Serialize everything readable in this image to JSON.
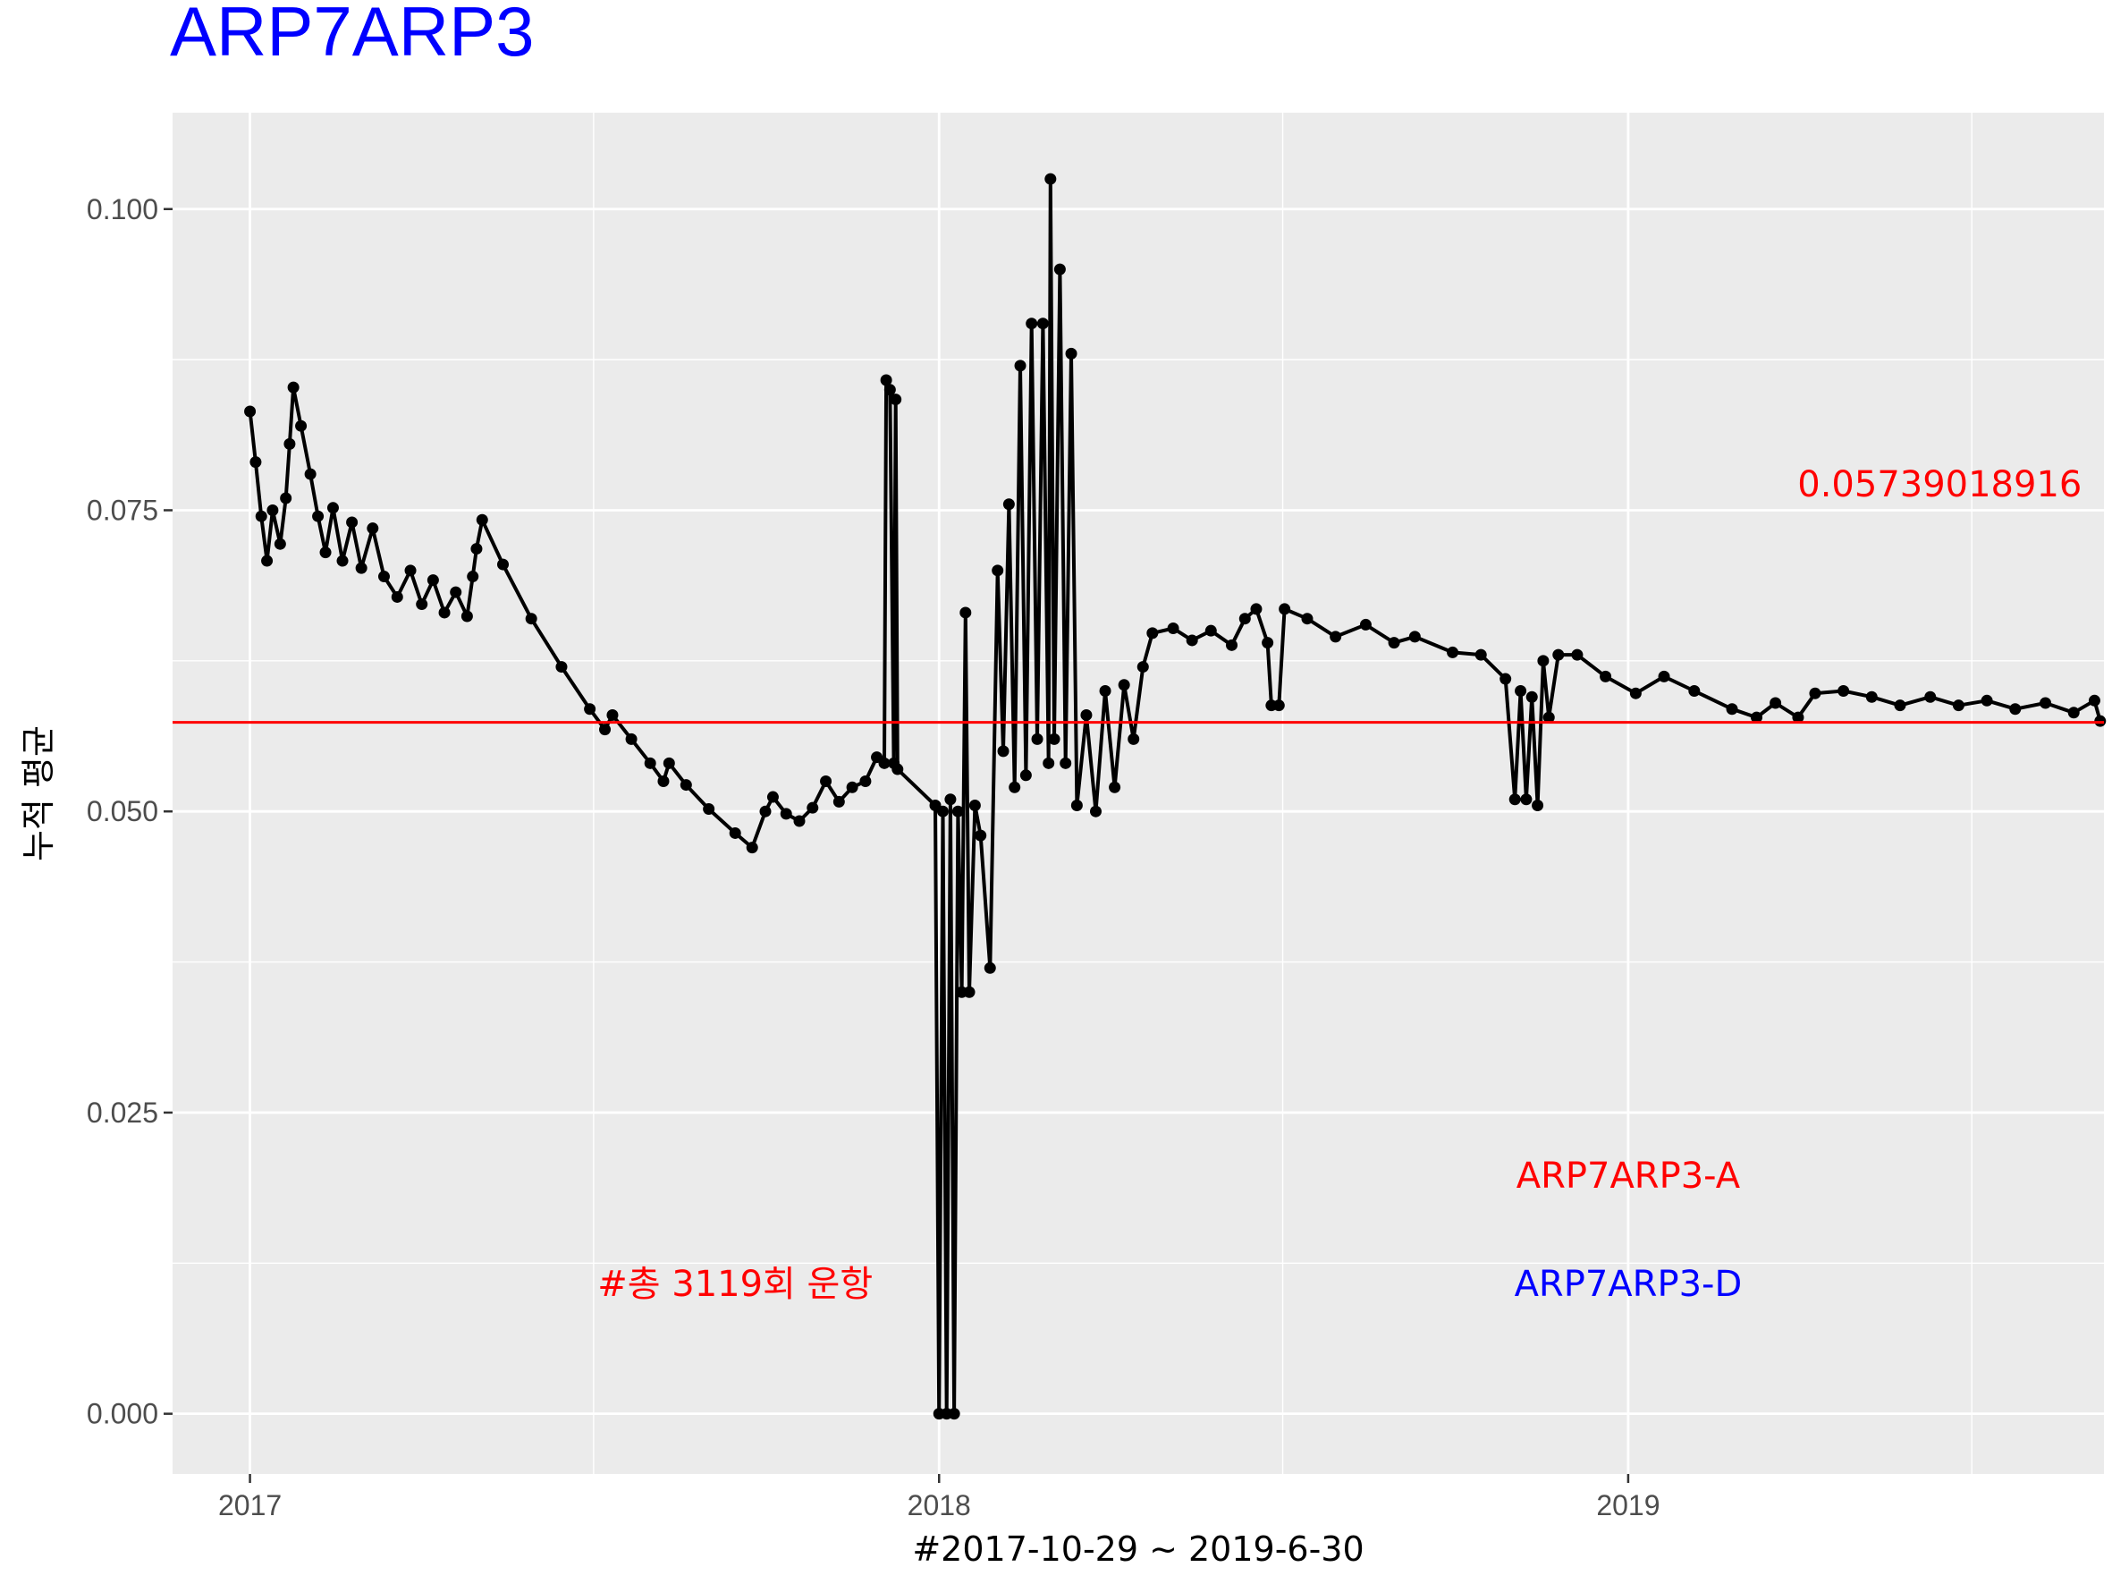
{
  "chart_data": {
    "type": "line",
    "title": "ARP7ARP3",
    "xlabel": "#2017-10-29 ~ 2019-6-30",
    "ylabel": "누적 평균",
    "x_ticks": [
      "2017",
      "2018",
      "2019"
    ],
    "y_ticks": [
      "0.000",
      "0.025",
      "0.050",
      "0.075",
      "0.100"
    ],
    "xlim": [
      "2016-11-21",
      "2019-09-10"
    ],
    "ylim": [
      -0.005,
      0.108
    ],
    "grid": true,
    "marker": "point",
    "series_color": "#000000",
    "reference_line": {
      "value": 0.05739018916,
      "label": "0.05739018916",
      "color": "#FF0000"
    },
    "annotations": [
      {
        "text": "#총 3119회 운항",
        "color": "#FF0000",
        "x": "2017-09-15",
        "y": 0.0108
      },
      {
        "text": "ARP7ARP3-A",
        "color": "#FF0000",
        "x": "2019-01-01",
        "y": 0.0198
      },
      {
        "text": "ARP7ARP3-D",
        "color": "#0000FF",
        "x": "2019-01-01",
        "y": 0.0108
      },
      {
        "text": "0.05739018916",
        "color": "#FF0000",
        "x": "2019-06-15",
        "y": 0.0772
      }
    ],
    "series": [
      {
        "values": [
          [
            "2017-01-01",
            0.0832
          ],
          [
            "2017-01-04",
            0.079
          ],
          [
            "2017-01-07",
            0.0745
          ],
          [
            "2017-01-10",
            0.0708
          ],
          [
            "2017-01-13",
            0.075
          ],
          [
            "2017-01-17",
            0.0722
          ],
          [
            "2017-01-20",
            0.076
          ],
          [
            "2017-01-22",
            0.0805
          ],
          [
            "2017-01-24",
            0.0852
          ],
          [
            "2017-01-28",
            0.082
          ],
          [
            "2017-02-02",
            0.078
          ],
          [
            "2017-02-06",
            0.0745
          ],
          [
            "2017-02-10",
            0.0715
          ],
          [
            "2017-02-14",
            0.0752
          ],
          [
            "2017-02-19",
            0.0708
          ],
          [
            "2017-02-24",
            0.074
          ],
          [
            "2017-03-01",
            0.0702
          ],
          [
            "2017-03-07",
            0.0735
          ],
          [
            "2017-03-13",
            0.0695
          ],
          [
            "2017-03-20",
            0.0678
          ],
          [
            "2017-03-27",
            0.07
          ],
          [
            "2017-04-02",
            0.0672
          ],
          [
            "2017-04-08",
            0.0692
          ],
          [
            "2017-04-14",
            0.0665
          ],
          [
            "2017-04-20",
            0.0682
          ],
          [
            "2017-04-26",
            0.0662
          ],
          [
            "2017-04-29",
            0.0695
          ],
          [
            "2017-05-01",
            0.0718
          ],
          [
            "2017-05-04",
            0.0742
          ],
          [
            "2017-05-15",
            0.0705
          ],
          [
            "2017-05-30",
            0.066
          ],
          [
            "2017-06-15",
            0.062
          ],
          [
            "2017-06-30",
            0.0585
          ],
          [
            "2017-07-08",
            0.0568
          ],
          [
            "2017-07-12",
            0.058
          ],
          [
            "2017-07-22",
            0.056
          ],
          [
            "2017-08-01",
            0.054
          ],
          [
            "2017-08-08",
            0.0525
          ],
          [
            "2017-08-11",
            0.054
          ],
          [
            "2017-08-20",
            0.0522
          ],
          [
            "2017-09-01",
            0.0502
          ],
          [
            "2017-09-15",
            0.0482
          ],
          [
            "2017-09-24",
            0.047
          ],
          [
            "2017-10-01",
            0.05
          ],
          [
            "2017-10-05",
            0.0512
          ],
          [
            "2017-10-12",
            0.0498
          ],
          [
            "2017-10-19",
            0.0492
          ],
          [
            "2017-10-26",
            0.0503
          ],
          [
            "2017-11-02",
            0.0525
          ],
          [
            "2017-11-09",
            0.0508
          ],
          [
            "2017-11-16",
            0.052
          ],
          [
            "2017-11-23",
            0.0525
          ],
          [
            "2017-11-29",
            0.0545
          ],
          [
            "2017-12-03",
            0.054
          ],
          [
            "2017-12-04",
            0.0858
          ],
          [
            "2017-12-06",
            0.085
          ],
          [
            "2017-12-08",
            0.054
          ],
          [
            "2017-12-09",
            0.0842
          ],
          [
            "2017-12-10",
            0.0535
          ],
          [
            "2017-12-30",
            0.0505
          ],
          [
            "2018-01-01",
            0.0
          ],
          [
            "2018-01-03",
            0.05
          ],
          [
            "2018-01-05",
            0.0
          ],
          [
            "2018-01-07",
            0.051
          ],
          [
            "2018-01-09",
            0.0
          ],
          [
            "2018-01-11",
            0.05
          ],
          [
            "2018-01-13",
            0.035
          ],
          [
            "2018-01-15",
            0.0665
          ],
          [
            "2018-01-17",
            0.035
          ],
          [
            "2018-01-20",
            0.0505
          ],
          [
            "2018-01-23",
            0.048
          ],
          [
            "2018-01-28",
            0.037
          ],
          [
            "2018-02-01",
            0.07
          ],
          [
            "2018-02-04",
            0.055
          ],
          [
            "2018-02-07",
            0.0755
          ],
          [
            "2018-02-10",
            0.052
          ],
          [
            "2018-02-13",
            0.087
          ],
          [
            "2018-02-16",
            0.053
          ],
          [
            "2018-02-19",
            0.0905
          ],
          [
            "2018-02-22",
            0.056
          ],
          [
            "2018-02-25",
            0.0905
          ],
          [
            "2018-02-28",
            0.054
          ],
          [
            "2018-03-01",
            0.1025
          ],
          [
            "2018-03-03",
            0.056
          ],
          [
            "2018-03-06",
            0.095
          ],
          [
            "2018-03-09",
            0.054
          ],
          [
            "2018-03-12",
            0.088
          ],
          [
            "2018-03-15",
            0.0505
          ],
          [
            "2018-03-20",
            0.058
          ],
          [
            "2018-03-25",
            0.05
          ],
          [
            "2018-03-30",
            0.06
          ],
          [
            "2018-04-04",
            0.052
          ],
          [
            "2018-04-09",
            0.0605
          ],
          [
            "2018-04-14",
            0.056
          ],
          [
            "2018-04-19",
            0.062
          ],
          [
            "2018-04-24",
            0.0648
          ],
          [
            "2018-05-05",
            0.0652
          ],
          [
            "2018-05-15",
            0.0642
          ],
          [
            "2018-05-25",
            0.065
          ],
          [
            "2018-06-05",
            0.0638
          ],
          [
            "2018-06-12",
            0.066
          ],
          [
            "2018-06-18",
            0.0668
          ],
          [
            "2018-06-24",
            0.064
          ],
          [
            "2018-06-26",
            0.0588
          ],
          [
            "2018-06-30",
            0.0588
          ],
          [
            "2018-07-03",
            0.0668
          ],
          [
            "2018-07-15",
            0.066
          ],
          [
            "2018-07-30",
            0.0645
          ],
          [
            "2018-08-15",
            0.0655
          ],
          [
            "2018-08-30",
            0.064
          ],
          [
            "2018-09-10",
            0.0645
          ],
          [
            "2018-09-30",
            0.0632
          ],
          [
            "2018-10-15",
            0.063
          ],
          [
            "2018-10-28",
            0.061
          ],
          [
            "2018-11-02",
            0.051
          ],
          [
            "2018-11-05",
            0.06
          ],
          [
            "2018-11-08",
            0.051
          ],
          [
            "2018-11-11",
            0.0595
          ],
          [
            "2018-11-14",
            0.0505
          ],
          [
            "2018-11-17",
            0.0625
          ],
          [
            "2018-11-20",
            0.0578
          ],
          [
            "2018-11-25",
            0.063
          ],
          [
            "2018-12-05",
            0.063
          ],
          [
            "2018-12-20",
            0.0612
          ],
          [
            "2019-01-05",
            0.0598
          ],
          [
            "2019-01-20",
            0.0612
          ],
          [
            "2019-02-05",
            0.06
          ],
          [
            "2019-02-25",
            0.0585
          ],
          [
            "2019-03-10",
            0.0578
          ],
          [
            "2019-03-20",
            0.059
          ],
          [
            "2019-04-01",
            0.0578
          ],
          [
            "2019-04-10",
            0.0598
          ],
          [
            "2019-04-25",
            0.06
          ],
          [
            "2019-05-10",
            0.0595
          ],
          [
            "2019-05-25",
            0.0588
          ],
          [
            "2019-06-10",
            0.0595
          ],
          [
            "2019-06-25",
            0.0588
          ],
          [
            "2019-07-10",
            0.0592
          ],
          [
            "2019-07-25",
            0.0585
          ],
          [
            "2019-08-10",
            0.059
          ],
          [
            "2019-08-25",
            0.0582
          ],
          [
            "2019-09-05",
            0.0592
          ],
          [
            "2019-09-08",
            0.0575
          ]
        ]
      }
    ]
  }
}
